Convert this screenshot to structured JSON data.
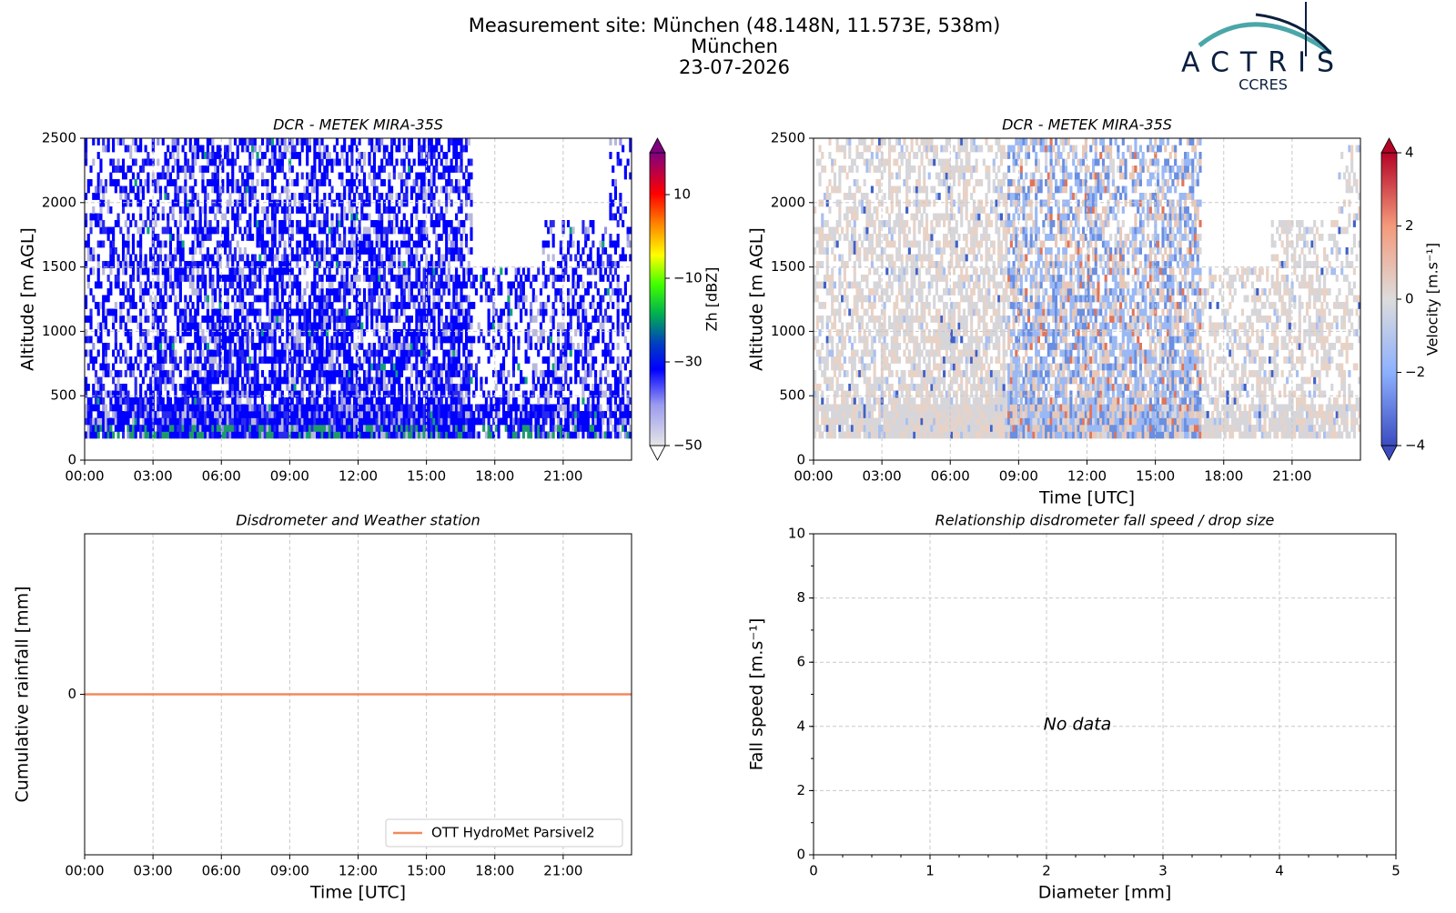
{
  "header": {
    "title": "Measurement site: München (48.148N, 11.573E, 538m)",
    "site": "München",
    "date": "23-07-2026"
  },
  "logo": {
    "name": "ACTRIS",
    "sub": "CCRES"
  },
  "chart_data": [
    {
      "type": "heatmap",
      "title": "DCR - METEK MIRA-35S",
      "ylabel": "Altitude [m AGL]",
      "xlim": [
        0,
        24
      ],
      "xticks": [
        {
          "value": 0,
          "label": "00:00"
        },
        {
          "value": 3,
          "label": "03:00"
        },
        {
          "value": 6,
          "label": "06:00"
        },
        {
          "value": 9,
          "label": "09:00"
        },
        {
          "value": 12,
          "label": "12:00"
        },
        {
          "value": 15,
          "label": "15:00"
        },
        {
          "value": 18,
          "label": "18:00"
        },
        {
          "value": 21,
          "label": "21:00"
        }
      ],
      "ylim": [
        0,
        2500
      ],
      "yticks": [
        0,
        500,
        1000,
        1500,
        2000,
        2500
      ],
      "grid": true,
      "colorbar_label": "Zh [dBZ]",
      "clim": [
        -50,
        20
      ],
      "cticks": [
        {
          "value": -50,
          "label": "−50"
        },
        {
          "value": -30,
          "label": "−30"
        },
        {
          "value": -10,
          "label": "−10"
        },
        10
      ],
      "colormap": "reflectivity"
    },
    {
      "type": "heatmap",
      "title": "DCR - METEK MIRA-35S",
      "ylabel": "Altitude [m AGL]",
      "xlabel": "Time [UTC]",
      "xlim": [
        0,
        24
      ],
      "xticks": [
        {
          "value": 0,
          "label": "00:00"
        },
        {
          "value": 3,
          "label": "03:00"
        },
        {
          "value": 6,
          "label": "06:00"
        },
        {
          "value": 9,
          "label": "09:00"
        },
        {
          "value": 12,
          "label": "12:00"
        },
        {
          "value": 15,
          "label": "15:00"
        },
        {
          "value": 18,
          "label": "18:00"
        },
        {
          "value": 21,
          "label": "21:00"
        }
      ],
      "ylim": [
        0,
        2500
      ],
      "yticks": [
        0,
        500,
        1000,
        1500,
        2000,
        2500
      ],
      "grid": true,
      "colorbar_label": "Velocity [m.s⁻¹]",
      "clim": [
        -4,
        4
      ],
      "cticks": [
        {
          "value": -4,
          "label": "−4"
        },
        {
          "value": -2,
          "label": "−2"
        },
        0,
        2,
        4
      ],
      "colormap": "velocity"
    },
    {
      "type": "line",
      "title": "Disdrometer and Weather station",
      "ylabel": "Cumulative rainfall [mm]",
      "xlabel": "Time [UTC]",
      "xlim": [
        0,
        24
      ],
      "xticks": [
        {
          "value": 0,
          "label": "00:00"
        },
        {
          "value": 3,
          "label": "03:00"
        },
        {
          "value": 6,
          "label": "06:00"
        },
        {
          "value": 9,
          "label": "09:00"
        },
        {
          "value": 12,
          "label": "12:00"
        },
        {
          "value": 15,
          "label": "15:00"
        },
        {
          "value": 18,
          "label": "18:00"
        },
        {
          "value": 21,
          "label": "21:00"
        }
      ],
      "ylim": [
        -0.055,
        0.055
      ],
      "yticks": [
        0
      ],
      "grid": true,
      "legend": "lower right",
      "series": [
        {
          "name": "OTT HydroMet Parsivel2",
          "color": "#ef8a5e",
          "x": [
            0,
            24
          ],
          "values": [
            0,
            0
          ]
        }
      ]
    },
    {
      "type": "scatter",
      "title": "Relationship disdrometer fall speed / drop size",
      "ylabel": "Fall speed [m.s⁻¹]",
      "xlabel": "Diameter [mm]",
      "xlim": [
        0,
        5
      ],
      "xticks": [
        0,
        1,
        2,
        3,
        4,
        5
      ],
      "ylim": [
        0,
        10
      ],
      "yticks": [
        0,
        2,
        4,
        6,
        8,
        10
      ],
      "grid": true,
      "annotation": "No data"
    }
  ]
}
